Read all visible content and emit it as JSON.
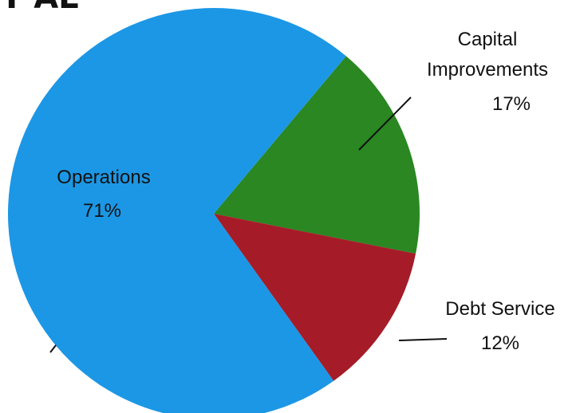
{
  "title_fragment": "T   AL",
  "chart_data": {
    "type": "pie",
    "title": "",
    "slices": [
      {
        "label": "Capital Improvements",
        "label_lines": [
          "Capital",
          "Improvements"
        ],
        "pct_text": "17%",
        "value": 17,
        "color": "#2a8722"
      },
      {
        "label": "Debt Service",
        "label_lines": [
          "Debt Service"
        ],
        "pct_text": "12%",
        "value": 12,
        "color": "#a51c28"
      },
      {
        "label": "Operations",
        "label_lines": [
          "Operations"
        ],
        "pct_text": "71%",
        "value": 71,
        "color": "#1c97e5"
      }
    ],
    "start_angle_deg": -50,
    "legend": "none"
  }
}
